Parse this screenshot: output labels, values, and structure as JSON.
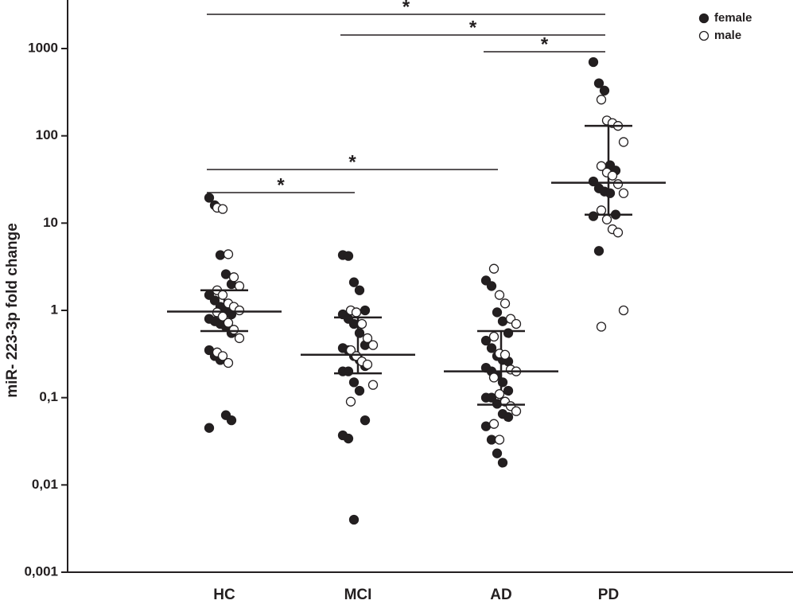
{
  "chart_data": {
    "type": "strip",
    "y_label": "miR- 223-3p  fold  change",
    "log_scale": true,
    "ylim": [
      0.001,
      3600
    ],
    "yticks": [
      {
        "value": 0.001,
        "label": "0,001"
      },
      {
        "value": 0.01,
        "label": "0,01"
      },
      {
        "value": 0.1,
        "label": "0,1"
      },
      1,
      10,
      100,
      1000
    ],
    "legend_position": "upper right",
    "categories": [
      "HC",
      "MCI",
      "AD",
      "PD"
    ],
    "series": [
      {
        "name": "female",
        "color": "#231f20",
        "filled": true,
        "values": [
          [
            19.5,
            16,
            4.3,
            2.6,
            2,
            1.5,
            1.3,
            1.1,
            1.0,
            0.9,
            0.8,
            0.75,
            0.7,
            0.65,
            0.55,
            0.35,
            0.3,
            0.27,
            0.063,
            0.055,
            0.045
          ],
          [
            4.3,
            4.2,
            2.1,
            1.7,
            1.0,
            0.9,
            0.8,
            0.7,
            0.55,
            0.4,
            0.37,
            0.35,
            0.3,
            0.27,
            0.23,
            0.2,
            0.2,
            0.15,
            0.12,
            0.055,
            0.037,
            0.034,
            0.004
          ],
          [
            2.2,
            1.9,
            0.95,
            0.75,
            0.55,
            0.45,
            0.37,
            0.3,
            0.27,
            0.26,
            0.22,
            0.2,
            0.18,
            0.15,
            0.12,
            0.1,
            0.1,
            0.085,
            0.065,
            0.06,
            0.047,
            0.033,
            0.023,
            0.018
          ],
          [
            700,
            400,
            330,
            46,
            40,
            30,
            25,
            23,
            22,
            12.5,
            12,
            4.8
          ]
        ]
      },
      {
        "name": "male",
        "color": "#231f20",
        "filled": false,
        "values": [
          [
            15,
            14.5,
            4.4,
            2.4,
            1.9,
            1.7,
            1.5,
            1.2,
            1.1,
            1,
            0.95,
            0.85,
            0.72,
            0.6,
            0.48,
            0.33,
            0.3,
            0.25
          ],
          [
            1.0,
            0.95,
            0.7,
            0.48,
            0.4,
            0.35,
            0.3,
            0.26,
            0.24,
            0.14,
            0.09
          ],
          [
            3.0,
            1.5,
            1.2,
            0.8,
            0.7,
            0.5,
            0.32,
            0.31,
            0.21,
            0.2,
            0.17,
            0.11,
            0.09,
            0.08,
            0.07,
            0.05,
            0.033
          ],
          [
            260,
            150,
            140,
            130,
            85,
            45,
            38,
            35,
            28,
            22,
            14,
            11,
            8.5,
            7.8,
            1.0,
            0.65
          ]
        ]
      }
    ],
    "medians": [
      0.97,
      0.31,
      0.2,
      29
    ],
    "q1": [
      0.58,
      0.19,
      0.083,
      12.5
    ],
    "q3": [
      1.7,
      0.83,
      0.58,
      130
    ],
    "comparisons": [
      {
        "from": "HC",
        "to": "PD",
        "label": "*"
      },
      {
        "from": "MCI",
        "to": "PD",
        "label": "*"
      },
      {
        "from": "AD",
        "to": "PD",
        "label": "*"
      },
      {
        "from": "HC",
        "to": "AD",
        "label": "*"
      },
      {
        "from": "HC",
        "to": "MCI",
        "label": "*"
      }
    ]
  }
}
